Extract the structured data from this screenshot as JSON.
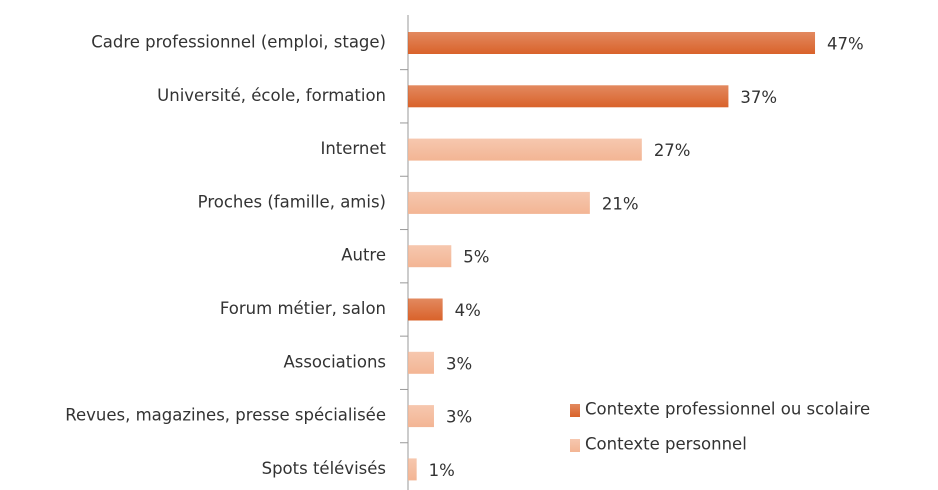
{
  "chart_data": {
    "type": "hbar",
    "categories": [
      "Cadre professionnel (emploi, stage)",
      "Université, école, formation",
      "Internet",
      "Proches (famille, amis)",
      "Autre",
      "Forum métier, salon",
      "Associations",
      "Revues, magazines, presse spécialisée",
      "Spots télévisés"
    ],
    "series": [
      {
        "name": "Contexte professionnel ou scolaire",
        "color": "#d9622a",
        "values": [
          47,
          37,
          null,
          null,
          null,
          4,
          null,
          null,
          null
        ],
        "value_labels": [
          "47%",
          "37%",
          null,
          null,
          null,
          "4%",
          null,
          null,
          null
        ]
      },
      {
        "name": "Contexte personnel",
        "color": "#f3b594",
        "values": [
          null,
          null,
          27,
          21,
          5,
          null,
          3,
          3,
          1
        ],
        "value_labels": [
          null,
          null,
          "27%",
          "21%",
          "5%",
          null,
          "3%",
          "3%",
          "1%"
        ]
      }
    ],
    "legend": "lower right"
  }
}
